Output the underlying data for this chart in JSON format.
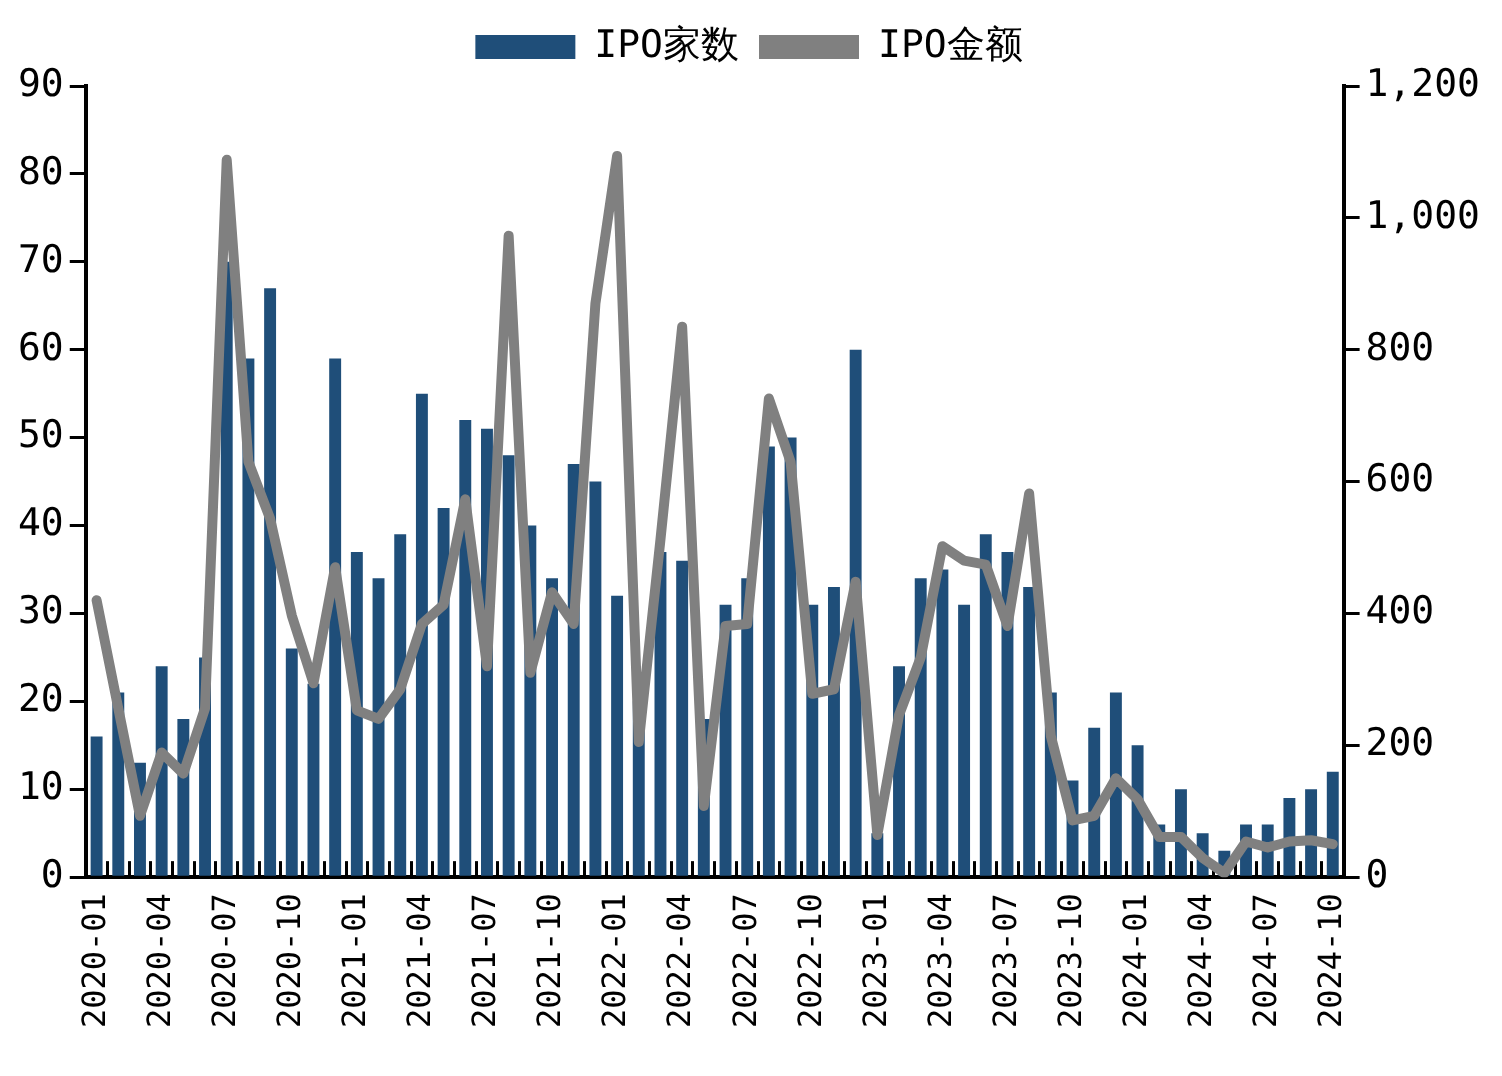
{
  "chart_data": {
    "type": "bar",
    "categories": [
      "2020-01",
      null,
      null,
      "2020-04",
      null,
      null,
      "2020-07",
      null,
      null,
      "2020-10",
      null,
      null,
      "2021-01",
      null,
      null,
      "2021-04",
      null,
      null,
      "2021-07",
      null,
      null,
      "2021-10",
      null,
      null,
      "2022-01",
      null,
      null,
      "2022-04",
      null,
      null,
      "2022-07",
      null,
      null,
      "2022-10",
      null,
      null,
      "2023-01",
      null,
      null,
      "2023-04",
      null,
      null,
      "2023-07",
      null,
      null,
      "2023-10",
      null,
      null,
      "2024-01",
      null,
      null,
      "2024-04",
      null,
      null,
      "2024-07",
      null,
      null,
      "2024-10"
    ],
    "series": [
      {
        "name": "IPO家数",
        "color": "#1f4e79",
        "values": [
          16,
          21,
          13,
          24,
          18,
          25,
          70,
          59,
          67,
          26,
          22,
          59,
          37,
          34,
          39,
          55,
          42,
          52,
          51,
          48,
          40,
          34,
          47,
          45,
          32,
          20,
          37,
          36,
          18,
          31,
          34,
          49,
          50,
          31,
          33,
          60,
          5,
          24,
          34,
          35,
          31,
          39,
          37,
          33,
          21,
          11,
          17,
          21,
          15,
          6,
          10,
          5,
          3,
          6,
          6,
          9,
          10,
          12
        ]
      },
      {
        "name": "IPO金额",
        "type": "line",
        "axis": "y2",
        "color": "#808080",
        "values": [
          420,
          256,
          93,
          189,
          157,
          256,
          1088,
          630,
          544,
          397,
          294,
          470,
          253,
          240,
          285,
          384,
          413,
          573,
          320,
          973,
          310,
          432,
          384,
          870,
          1094,
          205,
          512,
          835,
          108,
          381,
          384,
          726,
          630,
          278,
          285,
          448,
          64,
          246,
          333,
          502,
          480,
          474,
          381,
          582,
          214,
          86,
          93,
          150,
          118,
          61,
          61,
          29,
          6,
          54,
          45,
          54,
          56,
          50
        ]
      }
    ],
    "ylim": [
      0,
      90
    ],
    "yticks": [
      0,
      10,
      20,
      30,
      40,
      50,
      60,
      70,
      80,
      90
    ],
    "y2lim": [
      0,
      1200
    ],
    "y2ticks": [
      0,
      200,
      400,
      600,
      800,
      {
        "value": 1000,
        "label": "1,000"
      },
      {
        "value": 1200,
        "label": "1,200"
      }
    ],
    "legend": "top",
    "grid": false,
    "marker": "none",
    "line_style": "solid"
  }
}
